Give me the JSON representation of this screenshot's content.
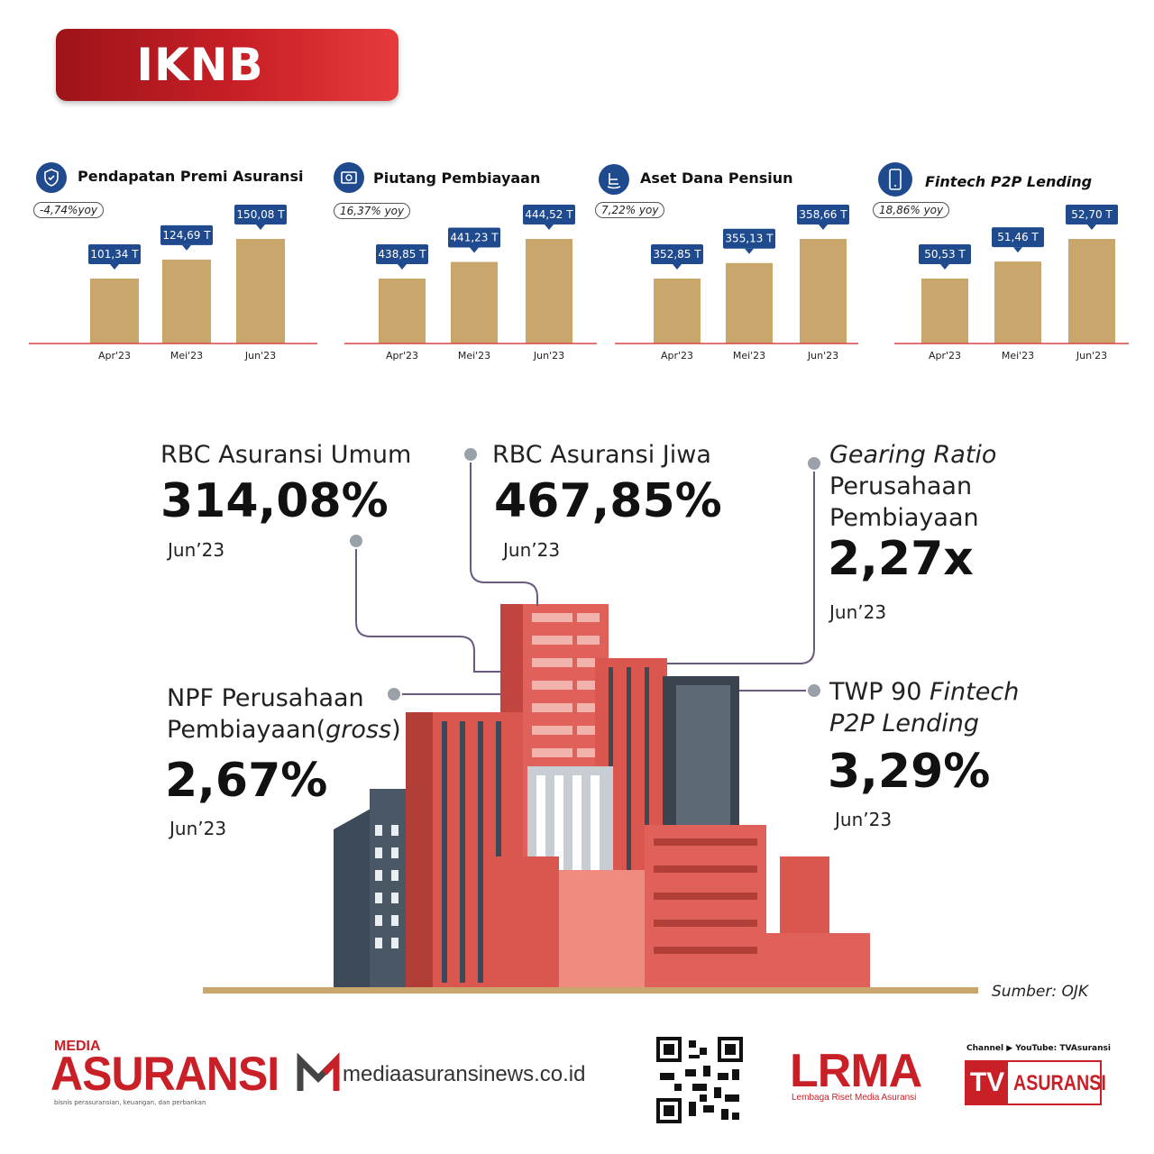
{
  "header": {
    "title": "IKNB"
  },
  "charts": [
    {
      "icon": "shield-hand-icon",
      "title": "Pendapatan Premi Asuransi",
      "yoy": "-4,74%yoy",
      "chart_data": {
        "type": "bar",
        "categories": [
          "Apr'23",
          "Mei'23",
          "Jun'23"
        ],
        "values": [
          101.34,
          124.69,
          150.08
        ],
        "labels": [
          "101,34 T",
          "124,69 T",
          "150,08 T"
        ]
      }
    },
    {
      "icon": "money-icon",
      "title": "Piutang Pembiayaan",
      "yoy": "16,37%  yoy",
      "chart_data": {
        "type": "bar",
        "categories": [
          "Apr'23",
          "Mei'23",
          "Jun'23"
        ],
        "values": [
          438.85,
          441.23,
          444.52
        ],
        "labels": [
          "438,85 T",
          "441,23 T",
          "444,52 T"
        ]
      }
    },
    {
      "icon": "rocking-chair-icon",
      "title": "Aset Dana Pensiun",
      "yoy": "7,22% yoy",
      "chart_data": {
        "type": "bar",
        "categories": [
          "Apr'23",
          "Mei'23",
          "Jun'23"
        ],
        "values": [
          352.85,
          355.13,
          358.66
        ],
        "labels": [
          "352,85 T",
          "355,13 T",
          "358,66 T"
        ]
      }
    },
    {
      "icon": "smartphone-icon",
      "title": "Fintech P2P Lending",
      "yoy": "18,86% yoy",
      "chart_data": {
        "type": "bar",
        "categories": [
          "Apr'23",
          "Mei'23",
          "Jun'23"
        ],
        "values": [
          50.53,
          51.46,
          52.7
        ],
        "labels": [
          "50,53 T",
          "51,46 T",
          "52,70 T"
        ]
      }
    }
  ],
  "colors": {
    "bar": "#c9a66b",
    "axis": "#d94545",
    "label_bg": "#1f4a8e",
    "accent_red": "#c92027"
  },
  "stats": {
    "rbc_umum": {
      "label": "RBC Asuransi Umum",
      "value": "314,08%",
      "date": "Jun’23"
    },
    "rbc_jiwa": {
      "label": "RBC Asuransi Jiwa",
      "value": "467,85%",
      "date": "Jun’23"
    },
    "gearing": {
      "label_1": "Gearing Ratio",
      "label_2": "Perusahaan",
      "label_3": "Pembiayaan",
      "value": "2,27x",
      "date": "Jun’23"
    },
    "npf": {
      "label_1": "NPF Perusahaan",
      "label_2": "Pembiayaan",
      "label_3": "(",
      "label_4": "gross",
      "label_5": ")",
      "value": "2,67%",
      "date": "Jun’23"
    },
    "twp": {
      "label_1": "TWP 90",
      "label_2": "Fintech",
      "label_3": "P2P Lending",
      "value": "3,29%",
      "date": "Jun’23"
    }
  },
  "source": "Sumber: OJK",
  "footer": {
    "media_small": "MEDIA",
    "media_big": "ASURANSI",
    "media_tag": "bisnis perasuransian, keuangan, dan perbankan",
    "news_url": "mediaasuransinews.co.id",
    "lrma": "LRMA",
    "lrma_sub": "Lembaga Riset Media Asuransi",
    "tv_channel": "Channel ▶ YouTube: TVAsuransi",
    "tv_tv": "TV",
    "tv_asuransi": "ASURANSI"
  }
}
